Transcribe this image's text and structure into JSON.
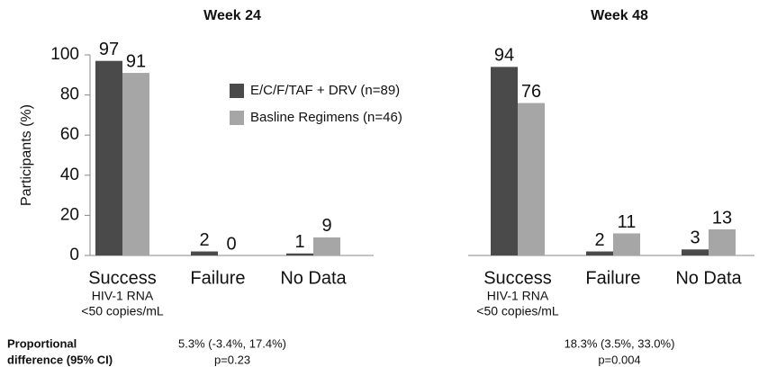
{
  "chart_data": [
    {
      "type": "bar",
      "title": "Week 24",
      "ylabel": "Participants (%)",
      "categories": [
        [
          "Success",
          "HIV-1 RNA",
          "<50 copies/mL"
        ],
        [
          "Failure"
        ],
        [
          "No Data"
        ]
      ],
      "series": [
        {
          "name": "E/C/F/TAF + DRV (n=89)",
          "color": "#4a4a4a",
          "values": [
            97,
            2,
            1
          ]
        },
        {
          "name": "Basline Regimens (n=46)",
          "color": "#a6a6a6",
          "values": [
            91,
            0,
            9
          ]
        }
      ],
      "ylim": [
        0,
        100
      ],
      "yticks": [
        0,
        20,
        40,
        60,
        80,
        100
      ],
      "grid": false,
      "annotations": [
        "5.3% (-3.4%, 17.4%)",
        "p=0.23"
      ]
    },
    {
      "type": "bar",
      "title": "Week 48",
      "categories": [
        [
          "Success",
          "HIV-1 RNA",
          "<50 copies/mL"
        ],
        [
          "Failure"
        ],
        [
          "No Data"
        ]
      ],
      "series": [
        {
          "color": "#4a4a4a",
          "values": [
            94,
            2,
            3
          ]
        },
        {
          "color": "#a6a6a6",
          "values": [
            76,
            11,
            13
          ]
        }
      ],
      "ylim": [
        0,
        100
      ],
      "grid": false,
      "annotations": [
        "18.3% (3.5%, 33.0%)",
        "p=0.004"
      ]
    }
  ],
  "footer": {
    "label": [
      "Proportional",
      "difference (95% CI)"
    ]
  }
}
